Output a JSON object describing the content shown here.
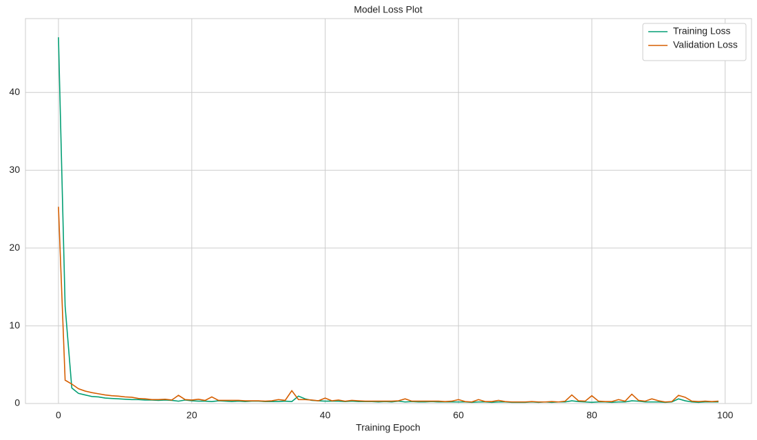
{
  "chart_data": {
    "type": "line",
    "title": "Model Loss Plot",
    "xlabel": "Training Epoch",
    "x": [
      0,
      1,
      2,
      3,
      4,
      5,
      6,
      7,
      8,
      9,
      10,
      11,
      12,
      13,
      14,
      15,
      16,
      17,
      18,
      19,
      20,
      21,
      22,
      23,
      24,
      25,
      26,
      27,
      28,
      29,
      30,
      31,
      32,
      33,
      34,
      35,
      36,
      37,
      38,
      39,
      40,
      41,
      42,
      43,
      44,
      45,
      46,
      47,
      48,
      49,
      50,
      51,
      52,
      53,
      54,
      55,
      56,
      57,
      58,
      59,
      60,
      61,
      62,
      63,
      64,
      65,
      66,
      67,
      68,
      69,
      70,
      71,
      72,
      73,
      74,
      75,
      76,
      77,
      78,
      79,
      80,
      81,
      82,
      83,
      84,
      85,
      86,
      87,
      88,
      89,
      90,
      91,
      92,
      93,
      94,
      95,
      96,
      97,
      98,
      99
    ],
    "series": [
      {
        "name": "Training Loss",
        "color": "#029e73",
        "values": [
          47.1,
          12.5,
          2.0,
          1.3,
          1.1,
          0.9,
          0.85,
          0.7,
          0.65,
          0.6,
          0.55,
          0.5,
          0.5,
          0.45,
          0.45,
          0.4,
          0.45,
          0.4,
          0.3,
          0.45,
          0.35,
          0.3,
          0.3,
          0.25,
          0.35,
          0.3,
          0.25,
          0.3,
          0.25,
          0.3,
          0.3,
          0.25,
          0.25,
          0.25,
          0.3,
          0.25,
          0.95,
          0.6,
          0.4,
          0.35,
          0.3,
          0.3,
          0.3,
          0.25,
          0.3,
          0.25,
          0.25,
          0.25,
          0.2,
          0.25,
          0.2,
          0.3,
          0.2,
          0.25,
          0.2,
          0.2,
          0.25,
          0.2,
          0.2,
          0.2,
          0.2,
          0.2,
          0.15,
          0.2,
          0.2,
          0.15,
          0.2,
          0.2,
          0.15,
          0.15,
          0.15,
          0.2,
          0.15,
          0.2,
          0.15,
          0.2,
          0.2,
          0.35,
          0.25,
          0.2,
          0.15,
          0.2,
          0.2,
          0.15,
          0.2,
          0.2,
          0.35,
          0.3,
          0.2,
          0.2,
          0.2,
          0.15,
          0.2,
          0.6,
          0.35,
          0.2,
          0.15,
          0.2,
          0.2,
          0.2
        ]
      },
      {
        "name": "Validation Loss",
        "color": "#d55e00",
        "values": [
          25.3,
          3.0,
          2.5,
          1.9,
          1.6,
          1.4,
          1.25,
          1.1,
          1.0,
          0.95,
          0.85,
          0.8,
          0.65,
          0.6,
          0.5,
          0.5,
          0.55,
          0.45,
          1.05,
          0.5,
          0.45,
          0.55,
          0.4,
          0.85,
          0.4,
          0.4,
          0.4,
          0.4,
          0.35,
          0.35,
          0.35,
          0.3,
          0.35,
          0.5,
          0.4,
          1.65,
          0.5,
          0.5,
          0.45,
          0.35,
          0.7,
          0.35,
          0.45,
          0.3,
          0.4,
          0.35,
          0.3,
          0.3,
          0.3,
          0.3,
          0.3,
          0.35,
          0.6,
          0.3,
          0.3,
          0.3,
          0.3,
          0.3,
          0.25,
          0.3,
          0.5,
          0.25,
          0.2,
          0.5,
          0.25,
          0.25,
          0.4,
          0.25,
          0.2,
          0.2,
          0.2,
          0.25,
          0.2,
          0.2,
          0.25,
          0.2,
          0.3,
          1.1,
          0.35,
          0.3,
          1.0,
          0.3,
          0.25,
          0.25,
          0.5,
          0.3,
          1.2,
          0.4,
          0.3,
          0.6,
          0.35,
          0.2,
          0.25,
          1.05,
          0.8,
          0.3,
          0.25,
          0.3,
          0.25,
          0.3
        ]
      }
    ],
    "xlim": [
      -4.95,
      103.95
    ],
    "ylim": [
      0,
      49.5
    ],
    "xticks": [
      0,
      20,
      40,
      60,
      80,
      100
    ],
    "yticks": [
      0,
      10,
      20,
      30,
      40
    ],
    "grid": true,
    "legend": "upper right"
  }
}
